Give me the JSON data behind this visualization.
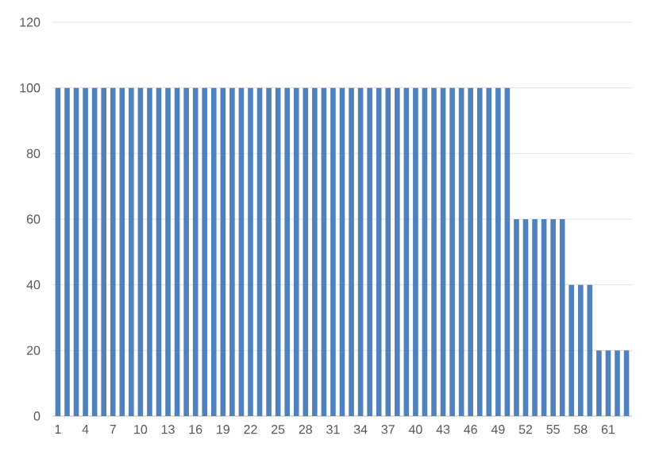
{
  "chart_data": {
    "type": "bar",
    "categories": [
      "1",
      null,
      null,
      "4",
      null,
      null,
      "7",
      null,
      null,
      "10",
      null,
      null,
      "13",
      null,
      null,
      "16",
      null,
      null,
      "19",
      null,
      null,
      "22",
      null,
      null,
      "25",
      null,
      null,
      "28",
      null,
      null,
      "31",
      null,
      null,
      "34",
      null,
      null,
      "37",
      null,
      null,
      "40",
      null,
      null,
      "43",
      null,
      null,
      "46",
      null,
      null,
      "49",
      null,
      null,
      "52",
      null,
      null,
      "55",
      null,
      null,
      "58",
      null,
      null,
      "61",
      null,
      null
    ],
    "values": [
      100,
      100,
      100,
      100,
      100,
      100,
      100,
      100,
      100,
      100,
      100,
      100,
      100,
      100,
      100,
      100,
      100,
      100,
      100,
      100,
      100,
      100,
      100,
      100,
      100,
      100,
      100,
      100,
      100,
      100,
      100,
      100,
      100,
      100,
      100,
      100,
      100,
      100,
      100,
      100,
      100,
      100,
      100,
      100,
      100,
      100,
      100,
      100,
      100,
      100,
      60,
      60,
      60,
      60,
      60,
      60,
      40,
      40,
      40,
      20,
      20,
      20,
      20
    ],
    "color": "#4f81bd",
    "ylim": [
      0,
      120
    ],
    "yticks": [
      0,
      20,
      40,
      60,
      80,
      100,
      120
    ],
    "grid": "y"
  }
}
